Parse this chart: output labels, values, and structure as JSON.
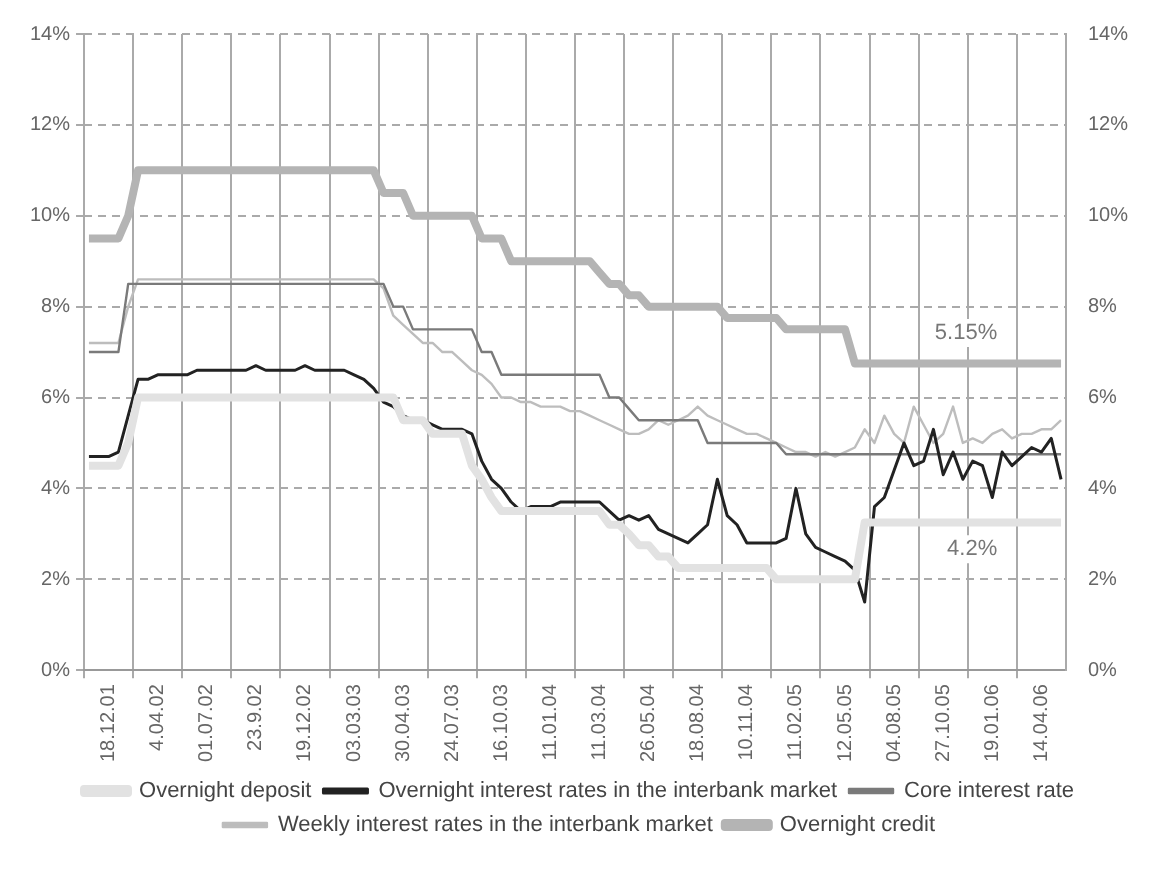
{
  "chart_data": {
    "type": "line",
    "categories": [
      null,
      null,
      "18.12.01",
      null,
      null,
      null,
      null,
      "4.04.02",
      null,
      null,
      null,
      null,
      "01.07.02",
      null,
      null,
      null,
      null,
      "23.9.02",
      null,
      null,
      null,
      null,
      "19.12.02",
      null,
      null,
      null,
      null,
      "03.03.03",
      null,
      null,
      null,
      null,
      "30.04.03",
      null,
      null,
      null,
      null,
      "24.07.03",
      null,
      null,
      null,
      null,
      "16.10.03",
      null,
      null,
      null,
      null,
      "11.01.04",
      null,
      null,
      null,
      null,
      "11.03.04",
      null,
      null,
      null,
      null,
      "26.05.04",
      null,
      null,
      null,
      null,
      "18.08.04",
      null,
      null,
      null,
      null,
      "10.11.04",
      null,
      null,
      null,
      null,
      "11.02.05",
      null,
      null,
      null,
      null,
      "12.05.05",
      null,
      null,
      null,
      null,
      "04.08.05",
      null,
      null,
      null,
      null,
      "27.10.05",
      null,
      null,
      null,
      null,
      "19.01.06",
      null,
      null,
      null,
      null,
      "14.04.06",
      null,
      null
    ],
    "series": [
      {
        "name": "Overnight deposit",
        "color": "#e2e2e2",
        "values": [
          4.5,
          4.5,
          4.5,
          4.5,
          5,
          6,
          6,
          6,
          6,
          6,
          6,
          6,
          6,
          6,
          6,
          6,
          6,
          6,
          6,
          6,
          6,
          6,
          6,
          6,
          6,
          6,
          6,
          6,
          6,
          6,
          6,
          6,
          5.5,
          5.5,
          5.5,
          5.2,
          5.2,
          5.2,
          5.2,
          4.5,
          4.2,
          3.8,
          3.5,
          3.5,
          3.5,
          3.5,
          3.5,
          3.5,
          3.5,
          3.5,
          3.5,
          3.5,
          3.5,
          3.2,
          3.2,
          3,
          2.75,
          2.75,
          2.5,
          2.5,
          2.25,
          2.25,
          2.25,
          2.25,
          2.25,
          2.25,
          2.25,
          2.25,
          2.25,
          2.25,
          2,
          2,
          2,
          2,
          2,
          2,
          2,
          2,
          2,
          3.25,
          3.25,
          3.25,
          3.25,
          3.25,
          3.25,
          3.25,
          3.25,
          3.25,
          3.25,
          3.25,
          3.25,
          3.25,
          3.25,
          3.25,
          3.25,
          3.25,
          3.25,
          3.25,
          3.25,
          3.25
        ]
      },
      {
        "name": "Overnight interest rates in the interbank market",
        "color": "#222222",
        "values": [
          4.7,
          4.7,
          4.7,
          4.8,
          5.6,
          6.4,
          6.4,
          6.5,
          6.5,
          6.5,
          6.5,
          6.6,
          6.6,
          6.6,
          6.6,
          6.6,
          6.6,
          6.7,
          6.6,
          6.6,
          6.6,
          6.6,
          6.7,
          6.6,
          6.6,
          6.6,
          6.6,
          6.5,
          6.4,
          6.2,
          5.9,
          5.8,
          5.6,
          5.5,
          5.5,
          5.4,
          5.3,
          5.3,
          5.3,
          5.2,
          4.6,
          4.2,
          4,
          3.7,
          3.5,
          3.6,
          3.6,
          3.6,
          3.7,
          3.7,
          3.7,
          3.7,
          3.7,
          3.5,
          3.3,
          3.4,
          3.3,
          3.4,
          3.1,
          3,
          2.9,
          2.8,
          3,
          3.2,
          4.2,
          3.4,
          3.2,
          2.8,
          2.8,
          2.8,
          2.8,
          2.9,
          4,
          3,
          2.7,
          2.6,
          2.5,
          2.4,
          2.2,
          1.5,
          3.6,
          3.8,
          4.4,
          5,
          4.5,
          4.6,
          5.3,
          4.3,
          4.8,
          4.2,
          4.6,
          4.5,
          3.8,
          4.8,
          4.5,
          4.7,
          4.9,
          4.8,
          5.1,
          4.2
        ]
      },
      {
        "name": "Core interest rate",
        "color": "#7a7a7a",
        "values": [
          7,
          7,
          7,
          7,
          8.5,
          8.5,
          8.5,
          8.5,
          8.5,
          8.5,
          8.5,
          8.5,
          8.5,
          8.5,
          8.5,
          8.5,
          8.5,
          8.5,
          8.5,
          8.5,
          8.5,
          8.5,
          8.5,
          8.5,
          8.5,
          8.5,
          8.5,
          8.5,
          8.5,
          8.5,
          8.5,
          8,
          8,
          7.5,
          7.5,
          7.5,
          7.5,
          7.5,
          7.5,
          7.5,
          7,
          7,
          6.5,
          6.5,
          6.5,
          6.5,
          6.5,
          6.5,
          6.5,
          6.5,
          6.5,
          6.5,
          6.5,
          6,
          6,
          5.75,
          5.5,
          5.5,
          5.5,
          5.5,
          5.5,
          5.5,
          5.5,
          5,
          5,
          5,
          5,
          5,
          5,
          5,
          5,
          4.75,
          4.75,
          4.75,
          4.75,
          4.75,
          4.75,
          4.75,
          4.75,
          4.75,
          4.75,
          4.75,
          4.75,
          4.75,
          4.75,
          4.75,
          4.75,
          4.75,
          4.75,
          4.75,
          4.75,
          4.75,
          4.75,
          4.75,
          4.75,
          4.75,
          4.75,
          4.75,
          4.75,
          4.75
        ]
      },
      {
        "name": "Weekly interest rates in the interbank market",
        "color": "#bdbdbd",
        "values": [
          7.2,
          7.2,
          7.2,
          7.2,
          8,
          8.6,
          8.6,
          8.6,
          8.6,
          8.6,
          8.6,
          8.6,
          8.6,
          8.6,
          8.6,
          8.6,
          8.6,
          8.6,
          8.6,
          8.6,
          8.6,
          8.6,
          8.6,
          8.6,
          8.6,
          8.6,
          8.6,
          8.6,
          8.6,
          8.6,
          8.4,
          7.8,
          7.6,
          7.4,
          7.2,
          7.2,
          7,
          7,
          6.8,
          6.6,
          6.5,
          6.3,
          6,
          6,
          5.9,
          5.9,
          5.8,
          5.8,
          5.8,
          5.7,
          5.7,
          5.6,
          5.5,
          5.4,
          5.3,
          5.2,
          5.2,
          5.3,
          5.5,
          5.4,
          5.5,
          5.6,
          5.8,
          5.6,
          5.5,
          5.4,
          5.3,
          5.2,
          5.2,
          5.1,
          5,
          4.9,
          4.8,
          4.8,
          4.7,
          4.8,
          4.7,
          4.8,
          4.9,
          5.3,
          5,
          5.6,
          5.2,
          5,
          5.8,
          5.4,
          5,
          5.2,
          5.8,
          5,
          5.1,
          5,
          5.2,
          5.3,
          5.1,
          5.2,
          5.2,
          5.3,
          5.3,
          5.5
        ]
      },
      {
        "name": "Overnight credit",
        "color": "#b4b4b4",
        "values": [
          9.5,
          9.5,
          9.5,
          9.5,
          10,
          11,
          11,
          11,
          11,
          11,
          11,
          11,
          11,
          11,
          11,
          11,
          11,
          11,
          11,
          11,
          11,
          11,
          11,
          11,
          11,
          11,
          11,
          11,
          11,
          11,
          10.5,
          10.5,
          10.5,
          10,
          10,
          10,
          10,
          10,
          10,
          10,
          9.5,
          9.5,
          9.5,
          9,
          9,
          9,
          9,
          9,
          9,
          9,
          9,
          9,
          8.75,
          8.5,
          8.5,
          8.25,
          8.25,
          8,
          8,
          8,
          8,
          8,
          8,
          8,
          8,
          7.75,
          7.75,
          7.75,
          7.75,
          7.75,
          7.75,
          7.5,
          7.5,
          7.5,
          7.5,
          7.5,
          7.5,
          7.5,
          6.75,
          6.75,
          6.75,
          6.75,
          6.75,
          6.75,
          6.75,
          6.75,
          6.75,
          6.75,
          6.75,
          6.75,
          6.75,
          6.75,
          6.75,
          6.75,
          6.75,
          6.75,
          6.75,
          6.75,
          6.75,
          6.75
        ]
      }
    ],
    "ylim": [
      0,
      14
    ],
    "yticks": [
      {
        "value": 0,
        "label": "0%"
      },
      {
        "value": 2,
        "label": "2%"
      },
      {
        "value": 4,
        "label": "4%"
      },
      {
        "value": 6,
        "label": "6%"
      },
      {
        "value": 8,
        "label": "8%"
      },
      {
        "value": 10,
        "label": "10%"
      },
      {
        "value": 12,
        "label": "12%"
      },
      {
        "value": 14,
        "label": "14%"
      }
    ],
    "y2lim": [
      0,
      14
    ],
    "y2ticks": [
      {
        "value": 0,
        "label": "0%"
      },
      {
        "value": 2,
        "label": "2%"
      },
      {
        "value": 4,
        "label": "4%"
      },
      {
        "value": 6,
        "label": "6%"
      },
      {
        "value": 8,
        "label": "8%"
      },
      {
        "value": 10,
        "label": "10%"
      },
      {
        "value": 12,
        "label": "12%"
      },
      {
        "value": 14,
        "label": "14%"
      }
    ],
    "annotations": [
      "5.15%",
      "4.2%"
    ],
    "grid": true,
    "legend": "bottom",
    "marker": "none",
    "line_style": "solid"
  }
}
